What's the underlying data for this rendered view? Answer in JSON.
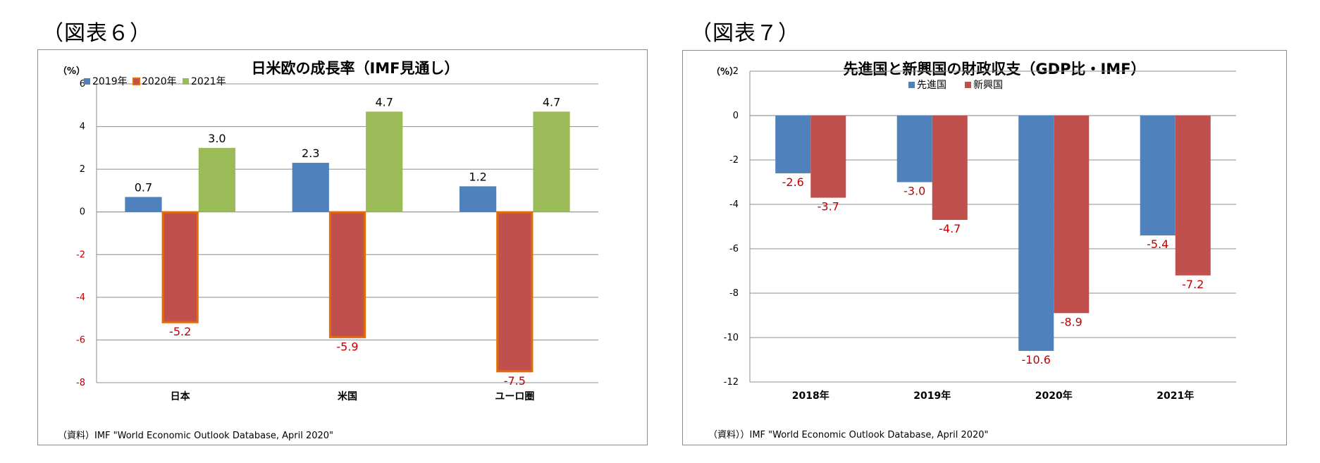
{
  "figures": [
    {
      "caption": "（図表６）"
    },
    {
      "caption": "（図表７）"
    }
  ],
  "chart_data": [
    {
      "type": "bar",
      "title": "日米欧の成長率（IMF見通し）",
      "unit": "（%）",
      "categories": [
        "日本",
        "米国",
        "ユーロ圏"
      ],
      "series": [
        {
          "name": "2019年",
          "values": [
            0.7,
            2.3,
            1.2
          ],
          "color": "#4f81bd",
          "border": "#4f81bd",
          "label_color": "#000000"
        },
        {
          "name": "2020年",
          "values": [
            -5.2,
            -5.9,
            -7.5
          ],
          "color": "#c0504d",
          "border": "#e36c0a",
          "label_color": "#c00000"
        },
        {
          "name": "2021年",
          "values": [
            3.0,
            4.7,
            4.7
          ],
          "color": "#9bbb59",
          "border": "#9bbb59",
          "label_color": "#000000"
        }
      ],
      "data_labels": [
        [
          "0.7",
          "2.3",
          "1.2"
        ],
        [
          "-5.2",
          "-5.9",
          "-7.5"
        ],
        [
          "3.0",
          "4.7",
          "4.7"
        ]
      ],
      "yticks": [
        6,
        4,
        2,
        0,
        -2,
        -4,
        -6,
        -8
      ],
      "ylim": [
        -8,
        6
      ],
      "grid": true,
      "legend_position": "top-left",
      "negative_tick_color": "#c00000",
      "source": "（資料）IMF \"World Economic Outlook Database, April 2020\""
    },
    {
      "type": "bar",
      "title": "先進国と新興国の財政収支（GDP比・IMF）",
      "unit": "（%）",
      "categories": [
        "2018年",
        "2019年",
        "2020年",
        "2021年"
      ],
      "series": [
        {
          "name": "先進国",
          "values": [
            -2.6,
            -3.0,
            -10.6,
            -5.4
          ],
          "color": "#4f81bd",
          "border": "#4f81bd",
          "label_color": "#c00000"
        },
        {
          "name": "新興国",
          "values": [
            -3.7,
            -4.7,
            -8.9,
            -7.2
          ],
          "color": "#c0504d",
          "border": "#c0504d",
          "label_color": "#c00000"
        }
      ],
      "data_labels": [
        [
          "-2.6",
          "-3.0",
          "-10.6",
          "-5.4"
        ],
        [
          "-3.7",
          "-4.7",
          "-8.9",
          "-7.2"
        ]
      ],
      "yticks": [
        2,
        0,
        -2,
        -4,
        -6,
        -8,
        -10,
        -12
      ],
      "ylim": [
        -12,
        2
      ],
      "grid": true,
      "legend_position": "top-center",
      "negative_tick_color": "#000000",
      "source": "（資料））IMF \"World Economic Outlook Database, April 2020\""
    }
  ]
}
